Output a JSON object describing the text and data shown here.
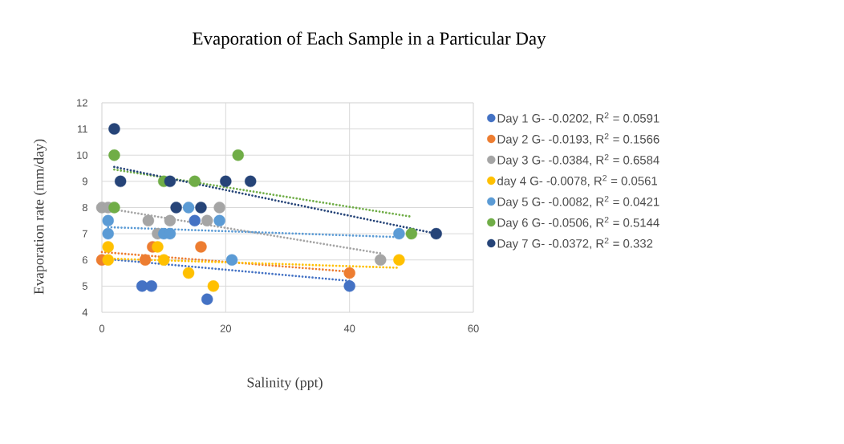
{
  "chart_data": {
    "type": "scatter",
    "title": "Evaporation of Each Sample in a Particular Day",
    "xlabel": "Salinity (ppt)",
    "ylabel": "Evaporation rate (mm/day)",
    "xlim": [
      0,
      60
    ],
    "xticks": [
      0,
      20,
      40,
      60
    ],
    "ylim": [
      4,
      12
    ],
    "yticks": [
      4,
      5,
      6,
      7,
      8,
      9,
      10,
      11,
      12
    ],
    "grid": true,
    "legend": "right",
    "marker": "circle",
    "series": [
      {
        "name": "Day 1  G- -0.0202, R$^{2}$ = 0.0591",
        "color": "#4472c4",
        "x": [
          6.5,
          8,
          15,
          17,
          40
        ],
        "values": [
          5,
          5,
          7.5,
          4.5,
          5
        ]
      },
      {
        "name": "Day 2  G- -0.0193, R$^{2}$ = 0.1566",
        "color": "#ed7d31",
        "x": [
          0,
          7,
          8.2,
          16,
          40
        ],
        "values": [
          6,
          6,
          6.5,
          6.5,
          5.5
        ]
      },
      {
        "name": "Day 3   G- -0.0384, R$^{2}$ = 0.6584",
        "color": "#a5a5a5",
        "x": [
          0,
          1,
          7.5,
          9,
          11,
          17,
          19,
          45
        ],
        "values": [
          8,
          8,
          7.5,
          7,
          7.5,
          7.5,
          8,
          6
        ]
      },
      {
        "name": "day 4  G- -0.0078, R$^{2}$ = 0.0561",
        "color": "#ffc000",
        "x": [
          1,
          1,
          9,
          10,
          14,
          18,
          48
        ],
        "values": [
          6.5,
          6,
          6.5,
          6,
          5.5,
          5,
          6
        ]
      },
      {
        "name": "Day 5  G- -0.0082, R$^{2}$ = 0.0421",
        "color": "#5b9bd5",
        "x": [
          1,
          1,
          10,
          11,
          14,
          19,
          21,
          48
        ],
        "values": [
          7.5,
          7,
          7,
          7,
          8,
          7.5,
          6,
          7
        ]
      },
      {
        "name": "Day 6  G- -0.0506, R$^{2}$ = 0.5144",
        "color": "#70ad47",
        "x": [
          2,
          2,
          10,
          15,
          22,
          50
        ],
        "values": [
          10,
          8,
          9,
          9,
          10,
          7
        ]
      },
      {
        "name": "Day 7  G- -0.0372, R$^{2}$ = 0.332",
        "color": "#264478",
        "x": [
          2,
          3,
          11,
          12,
          16,
          20,
          24,
          54
        ],
        "values": [
          11,
          9,
          9,
          8,
          8,
          9,
          9,
          7
        ]
      },
      {
        "type": "line",
        "line_style": "dotted",
        "marker": "none",
        "color": "#4472c4",
        "x": [
          0,
          40
        ],
        "values": [
          6.05,
          5.2
        ]
      },
      {
        "type": "line",
        "line_style": "dotted",
        "marker": "none",
        "color": "#ed7d31",
        "x": [
          0,
          40
        ],
        "values": [
          6.3,
          5.55
        ]
      },
      {
        "type": "line",
        "line_style": "dotted",
        "marker": "none",
        "color": "#a5a5a5",
        "x": [
          0,
          45
        ],
        "values": [
          8.0,
          6.25
        ]
      },
      {
        "type": "line",
        "line_style": "dotted",
        "marker": "none",
        "color": "#ffc000",
        "x": [
          1,
          48
        ],
        "values": [
          6.05,
          5.7
        ]
      },
      {
        "type": "line",
        "line_style": "dotted",
        "marker": "none",
        "color": "#5b9bd5",
        "x": [
          1,
          48
        ],
        "values": [
          7.25,
          6.87
        ]
      },
      {
        "type": "line",
        "line_style": "dotted",
        "marker": "none",
        "color": "#70ad47",
        "x": [
          2,
          50
        ],
        "values": [
          9.45,
          7.65
        ]
      },
      {
        "type": "line",
        "line_style": "dotted",
        "marker": "none",
        "color": "#264478",
        "x": [
          2,
          54
        ],
        "values": [
          9.55,
          7.0
        ]
      }
    ]
  }
}
